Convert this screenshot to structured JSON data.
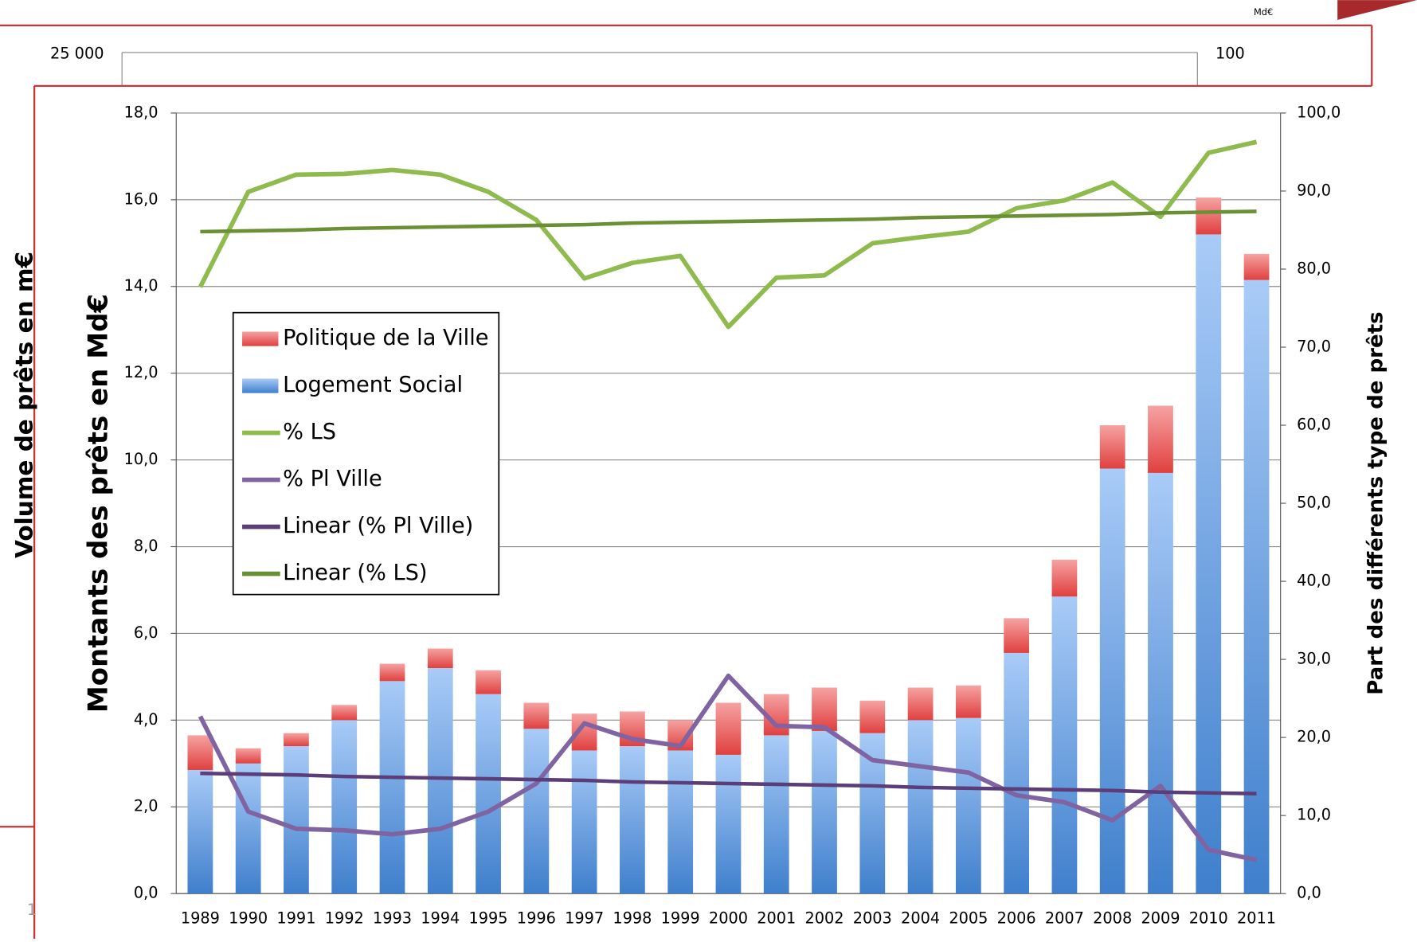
{
  "background": {
    "left_tick": "25 000",
    "right_tick": "100",
    "unit": "Md€",
    "axis_label": "Volume de prêts en m€",
    "page_number": "1"
  },
  "chart_data": {
    "type": "bar",
    "ylabel": "Montants des prêts en Md€",
    "y2label": "Part des différents type de prêts",
    "categories": [
      "1989",
      "1990",
      "1991",
      "1992",
      "1993",
      "1994",
      "1995",
      "1996",
      "1997",
      "1998",
      "1999",
      "2000",
      "2001",
      "2002",
      "2003",
      "2004",
      "2005",
      "2006",
      "2007",
      "2008",
      "2009",
      "2010",
      "2011"
    ],
    "ylim": [
      0,
      18
    ],
    "yticks": [
      {
        "value": 0,
        "label": "0,0"
      },
      {
        "value": 2,
        "label": "2,0"
      },
      {
        "value": 4,
        "label": "4,0"
      },
      {
        "value": 6,
        "label": "6,0"
      },
      {
        "value": 8,
        "label": "8,0"
      },
      {
        "value": 10,
        "label": "10,0"
      },
      {
        "value": 12,
        "label": "12,0"
      },
      {
        "value": 14,
        "label": "14,0"
      },
      {
        "value": 16,
        "label": "16,0"
      },
      {
        "value": 18,
        "label": "18,0"
      }
    ],
    "y2lim": [
      0,
      100
    ],
    "y2ticks": [
      {
        "value": 0,
        "label": "0,0"
      },
      {
        "value": 10,
        "label": "10,0"
      },
      {
        "value": 20,
        "label": "20,0"
      },
      {
        "value": 30,
        "label": "30,0"
      },
      {
        "value": 40,
        "label": "40,0"
      },
      {
        "value": 50,
        "label": "50,0"
      },
      {
        "value": 60,
        "label": "60,0"
      },
      {
        "value": 70,
        "label": "70,0"
      },
      {
        "value": 80,
        "label": "80,0"
      },
      {
        "value": 90,
        "label": "90,0"
      },
      {
        "value": 100,
        "label": "100,0"
      }
    ],
    "grid": true,
    "series": [
      {
        "name": "Politique de la Ville",
        "type": "bar",
        "color": "#e9504f",
        "values": [
          0.8,
          0.35,
          0.3,
          0.35,
          0.4,
          0.45,
          0.55,
          0.6,
          0.85,
          0.8,
          0.7,
          1.2,
          0.95,
          1.0,
          0.75,
          0.75,
          0.75,
          0.8,
          0.85,
          1.0,
          1.55,
          0.85,
          0.6
        ]
      },
      {
        "name": "Logement Social",
        "type": "bar",
        "color": "#4a86d0",
        "values": [
          2.85,
          3.0,
          3.4,
          4.0,
          4.9,
          5.2,
          4.6,
          3.8,
          3.3,
          3.4,
          3.3,
          3.2,
          3.65,
          3.75,
          3.7,
          4.0,
          4.05,
          5.55,
          6.85,
          9.8,
          9.7,
          15.2,
          14.15
        ]
      },
      {
        "name": "% LS",
        "type": "line",
        "axis": "y2",
        "color": "#8fbb4e",
        "values": [
          77.7,
          89.9,
          92.1,
          92.2,
          92.7,
          92.1,
          89.9,
          86.3,
          78.8,
          80.8,
          81.7,
          72.6,
          78.9,
          79.2,
          83.3,
          84.1,
          84.8,
          87.8,
          88.8,
          91.1,
          86.7,
          94.9,
          96.3
        ]
      },
      {
        "name": "% Pl Ville",
        "type": "line",
        "axis": "y2",
        "color": "#8064a2",
        "values": [
          22.7,
          10.5,
          8.3,
          8.1,
          7.6,
          8.3,
          10.5,
          14.1,
          21.8,
          19.8,
          18.9,
          27.9,
          21.5,
          21.3,
          17.1,
          16.3,
          15.5,
          12.6,
          11.7,
          9.4,
          13.8,
          5.6,
          4.3
        ]
      },
      {
        "name": "Linear (% Pl Ville)",
        "type": "line",
        "axis": "y2",
        "color": "#5b3d7a",
        "values": [
          15.4,
          15.3,
          15.2,
          15.0,
          14.9,
          14.8,
          14.7,
          14.6,
          14.5,
          14.3,
          14.2,
          14.1,
          14.0,
          13.9,
          13.8,
          13.6,
          13.5,
          13.4,
          13.3,
          13.2,
          13.0,
          12.9,
          12.8
        ]
      },
      {
        "name": "Linear (% LS)",
        "type": "line",
        "axis": "y2",
        "color": "#6b8f35",
        "values": [
          84.8,
          84.9,
          85.0,
          85.2,
          85.3,
          85.4,
          85.5,
          85.6,
          85.7,
          85.9,
          86.0,
          86.1,
          86.2,
          86.3,
          86.4,
          86.6,
          86.7,
          86.8,
          86.9,
          87.0,
          87.2,
          87.3,
          87.4
        ]
      }
    ]
  }
}
